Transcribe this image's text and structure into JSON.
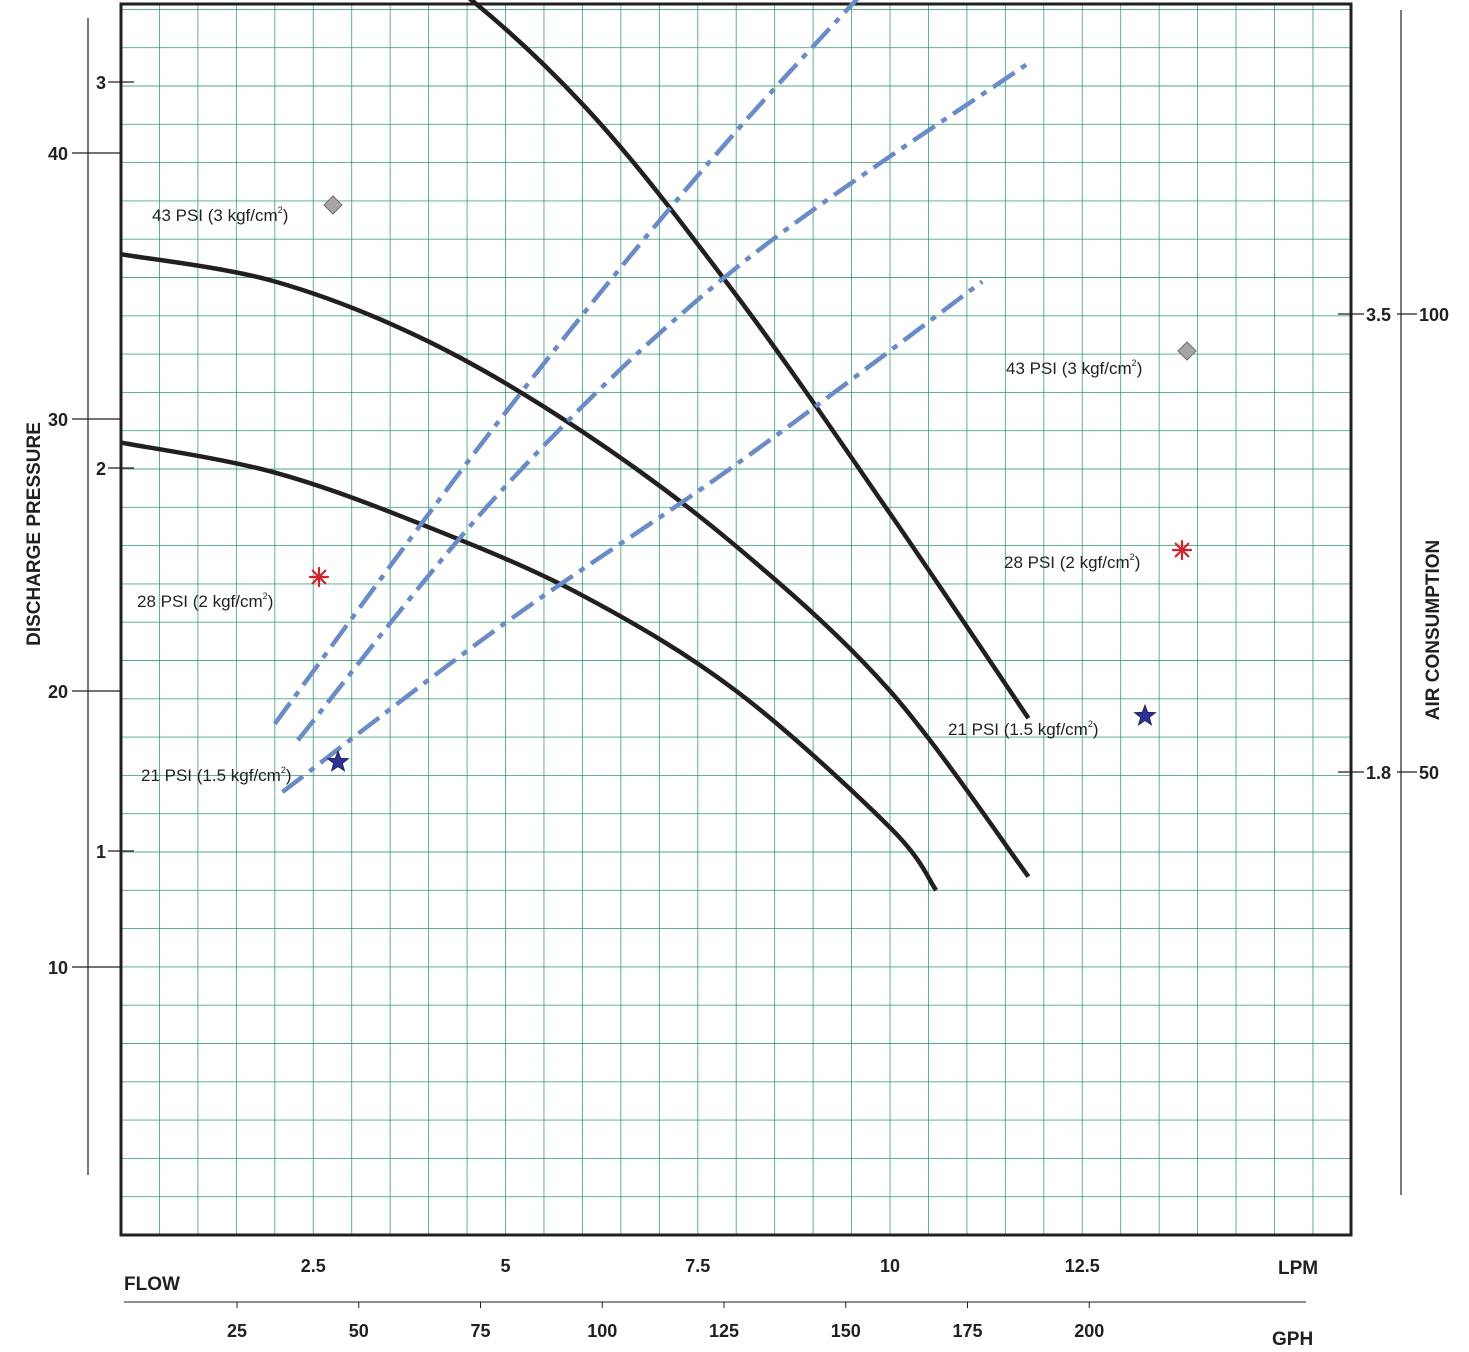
{
  "chart_data": {
    "type": "line",
    "title": "",
    "x_axes": {
      "lpm": {
        "label": "LPM",
        "ticks": [
          2.5,
          5,
          7.5,
          10,
          12.5
        ],
        "range": [
          0,
          16
        ]
      },
      "gph": {
        "label": "GPH",
        "ticks": [
          25,
          50,
          75,
          100,
          125,
          150,
          175,
          200
        ]
      }
    },
    "flow_label": "FLOW",
    "y_axes": {
      "left_title": "DISCHARGE PRESSURE",
      "left_outer_ticks": [
        "40",
        "30",
        "20",
        "10"
      ],
      "left_inner_ticks": [
        "3",
        "2",
        "1"
      ],
      "right_title": "AIR CONSUMPTION",
      "right_inner_ticks": [
        "3.5",
        "1.8"
      ],
      "right_outer_ticks": [
        "100",
        "50"
      ]
    },
    "grid": true,
    "series": [
      {
        "name": "43 PSI (3 kgf/cm2)",
        "kind": "flow",
        "style": "solid",
        "color": "#231f20",
        "x": [
          0,
          2,
          4,
          6,
          8,
          10,
          11.8
        ],
        "y": [
          30.8,
          29.5,
          26.5,
          21.5,
          14.5,
          6.5,
          -1.0
        ]
      },
      {
        "name": "28 PSI (2 kgf/cm2)",
        "kind": "flow",
        "style": "solid",
        "color": "#231f20",
        "x": [
          0,
          2,
          4,
          6,
          8,
          10,
          11.8
        ],
        "y": [
          16.0,
          15.0,
          12.8,
          9.5,
          5.3,
          0,
          -6.8
        ]
      },
      {
        "name": "21 PSI (1.5 kgf/cm2)",
        "kind": "flow",
        "style": "solid",
        "color": "#231f20",
        "x": [
          0,
          2,
          4,
          6,
          8,
          10,
          10.6
        ],
        "y": [
          9.1,
          8.0,
          6.0,
          3.5,
          0,
          -5.0,
          -7.3
        ]
      },
      {
        "name": "43 PSI (3 kgf/cm2)",
        "kind": "air",
        "style": "dash-dot",
        "color": "#6a8bc8",
        "x": [
          2.0,
          5.0,
          8.0,
          11.8
        ],
        "y": [
          -1.2,
          10.2,
          20.5,
          32.0
        ]
      },
      {
        "name": "28 PSI (2 kgf/cm2)",
        "kind": "air",
        "style": "dash-dot",
        "color": "#6a8bc8",
        "x": [
          2.3,
          5.0,
          8.0,
          11.8
        ],
        "y": [
          -1.8,
          7.5,
          15.5,
          23.0
        ]
      },
      {
        "name": "21 PSI (1.5 kgf/cm2)",
        "kind": "air",
        "style": "dash-dot",
        "color": "#6a8bc8",
        "x": [
          2.1,
          5.0,
          8.0,
          11.2
        ],
        "y": [
          -3.7,
          2.5,
          8.3,
          15.0
        ]
      }
    ],
    "annotations": [
      {
        "text": "43 PSI (3 kgf/cm",
        "sup": "2",
        "close": ")",
        "marker": "diamond",
        "color": "#9a9a9a",
        "side": "flow"
      },
      {
        "text": "28 PSI (2 kgf/cm",
        "sup": "2",
        "close": ")",
        "marker": "asterisk",
        "color": "#d2232a",
        "side": "flow"
      },
      {
        "text": "21 PSI (1.5 kgf/cm",
        "sup": "2",
        "close": ")",
        "marker": "star",
        "color": "#2e3192",
        "side": "flow"
      },
      {
        "text": "43 PSI (3 kgf/cm",
        "sup": "2",
        "close": ")",
        "marker": "diamond",
        "color": "#9a9a9a",
        "side": "air"
      },
      {
        "text": "28 PSI (2 kgf/cm",
        "sup": "2",
        "close": ")",
        "marker": "asterisk",
        "color": "#d2232a",
        "side": "air"
      },
      {
        "text": "21 PSI (1.5 kgf/cm",
        "sup": "2",
        "close": ")",
        "marker": "star",
        "color": "#2e3192",
        "side": "air"
      }
    ]
  }
}
